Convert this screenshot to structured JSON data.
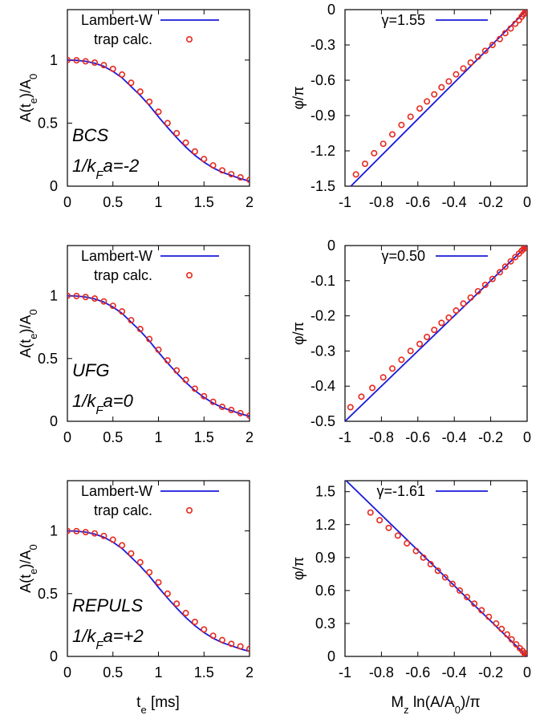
{
  "colors": {
    "curve": "#1a1adb",
    "points": "#e8281c",
    "annotation": "#1a1adb",
    "axis": "#000000"
  },
  "labels": {
    "amp_ylabel_main": "A(t",
    "amp_ylabel_sub": "e",
    "amp_ylabel_mid": ")/A",
    "amp_ylabel_sub2": "0",
    "phase_ylabel": "φ/π",
    "amp_xlabel_main": "t",
    "amp_xlabel_sub": "e",
    "amp_xlabel_unit": " [ms]",
    "phase_xlabel_M": "M",
    "phase_xlabel_z": "z",
    "phase_xlabel_ln": " ln(A/A",
    "phase_xlabel_0": "0",
    "phase_xlabel_end": ")/π"
  },
  "chart_data": [
    {
      "type": "line",
      "panel": "amp-bcs",
      "xlim": [
        0,
        2
      ],
      "ylim": [
        0,
        1.4
      ],
      "xticks": [
        "0",
        "0.5",
        "1",
        "1.5",
        "2"
      ],
      "yticks": [
        "0",
        "0.5",
        "1"
      ],
      "legend": [
        "Lambert-W",
        "trap calc."
      ],
      "annotation": [
        "BCS",
        "1/k",
        "F",
        "a=-2"
      ],
      "series": [
        {
          "name": "Lambert-W",
          "kind": "curve",
          "x": [
            0,
            0.1,
            0.2,
            0.3,
            0.4,
            0.5,
            0.6,
            0.7,
            0.8,
            0.9,
            1.0,
            1.1,
            1.2,
            1.3,
            1.4,
            1.5,
            1.6,
            1.7,
            1.8,
            1.9,
            2.0
          ],
          "y": [
            1.0,
            0.998,
            0.99,
            0.975,
            0.95,
            0.91,
            0.86,
            0.79,
            0.72,
            0.64,
            0.55,
            0.465,
            0.385,
            0.31,
            0.245,
            0.19,
            0.145,
            0.11,
            0.085,
            0.06,
            0.04
          ]
        },
        {
          "name": "trap calc.",
          "kind": "points",
          "x": [
            0,
            0.1,
            0.2,
            0.3,
            0.4,
            0.5,
            0.6,
            0.7,
            0.8,
            0.9,
            1.0,
            1.1,
            1.2,
            1.3,
            1.4,
            1.5,
            1.6,
            1.7,
            1.8,
            1.9,
            2.0
          ],
          "y": [
            1.0,
            0.998,
            0.99,
            0.98,
            0.96,
            0.93,
            0.885,
            0.82,
            0.75,
            0.67,
            0.59,
            0.5,
            0.42,
            0.345,
            0.275,
            0.215,
            0.165,
            0.125,
            0.095,
            0.07,
            0.05
          ]
        }
      ]
    },
    {
      "type": "line",
      "panel": "phase-bcs",
      "xlim": [
        -1,
        0
      ],
      "ylim": [
        -1.5,
        0
      ],
      "xticks": [
        "-1",
        "-0.8",
        "-0.6",
        "-0.4",
        "-0.2",
        "0"
      ],
      "yticks": [
        "0",
        "-0.3",
        "-0.6",
        "-0.9",
        "-1.2",
        "-1.5"
      ],
      "legend": [
        "γ=1.55"
      ],
      "series": [
        {
          "name": "γ=1.55",
          "kind": "curve",
          "x": [
            -0.968,
            0
          ],
          "y": [
            -1.5,
            0
          ]
        },
        {
          "kind": "points",
          "x": [
            -0.94,
            -0.89,
            -0.84,
            -0.79,
            -0.74,
            -0.69,
            -0.64,
            -0.59,
            -0.55,
            -0.51,
            -0.47,
            -0.43,
            -0.39,
            -0.35,
            -0.31,
            -0.27,
            -0.23,
            -0.19,
            -0.15,
            -0.12,
            -0.09,
            -0.065,
            -0.045,
            -0.03,
            -0.02,
            -0.012,
            -0.006,
            -0.002
          ],
          "y": [
            -1.4,
            -1.31,
            -1.22,
            -1.14,
            -1.06,
            -0.98,
            -0.91,
            -0.84,
            -0.78,
            -0.72,
            -0.66,
            -0.61,
            -0.55,
            -0.5,
            -0.45,
            -0.4,
            -0.35,
            -0.3,
            -0.25,
            -0.2,
            -0.16,
            -0.12,
            -0.09,
            -0.06,
            -0.04,
            -0.025,
            -0.012,
            -0.004
          ]
        }
      ]
    },
    {
      "type": "line",
      "panel": "amp-ufg",
      "xlim": [
        0,
        2
      ],
      "ylim": [
        0,
        1.4
      ],
      "xticks": [
        "0",
        "0.5",
        "1",
        "1.5",
        "2"
      ],
      "yticks": [
        "0",
        "0.5",
        "1"
      ],
      "legend": [
        "Lambert-W",
        "trap calc."
      ],
      "annotation": [
        "UFG",
        "1/k",
        "F",
        "a=0"
      ],
      "series": [
        {
          "name": "Lambert-W",
          "kind": "curve",
          "x": [
            0,
            0.1,
            0.2,
            0.3,
            0.4,
            0.5,
            0.6,
            0.7,
            0.8,
            0.9,
            1.0,
            1.1,
            1.2,
            1.3,
            1.4,
            1.5,
            1.6,
            1.7,
            1.8,
            1.9,
            2.0
          ],
          "y": [
            1.0,
            0.998,
            0.99,
            0.975,
            0.95,
            0.91,
            0.86,
            0.79,
            0.72,
            0.64,
            0.55,
            0.465,
            0.385,
            0.31,
            0.245,
            0.19,
            0.145,
            0.11,
            0.085,
            0.06,
            0.04
          ]
        },
        {
          "name": "trap calc.",
          "kind": "points",
          "x": [
            0,
            0.1,
            0.2,
            0.3,
            0.4,
            0.5,
            0.6,
            0.7,
            0.8,
            0.9,
            1.0,
            1.1,
            1.2,
            1.3,
            1.4,
            1.5,
            1.6,
            1.7,
            1.8,
            1.9,
            2.0
          ],
          "y": [
            1.0,
            0.998,
            0.99,
            0.978,
            0.955,
            0.92,
            0.875,
            0.805,
            0.735,
            0.655,
            0.57,
            0.485,
            0.405,
            0.33,
            0.26,
            0.2,
            0.155,
            0.115,
            0.09,
            0.065,
            0.045
          ]
        }
      ]
    },
    {
      "type": "line",
      "panel": "phase-ufg",
      "xlim": [
        -1,
        0
      ],
      "ylim": [
        -0.5,
        0
      ],
      "xticks": [
        "-1",
        "-0.8",
        "-0.6",
        "-0.4",
        "-0.2",
        "0"
      ],
      "yticks": [
        "0",
        "-0.1",
        "-0.2",
        "-0.3",
        "-0.4",
        "-0.5"
      ],
      "legend": [
        "γ=0.50"
      ],
      "series": [
        {
          "name": "γ=0.50",
          "kind": "curve",
          "x": [
            -1,
            0
          ],
          "y": [
            -0.5,
            0
          ]
        },
        {
          "kind": "points",
          "x": [
            -0.97,
            -0.91,
            -0.85,
            -0.79,
            -0.74,
            -0.69,
            -0.64,
            -0.59,
            -0.55,
            -0.51,
            -0.47,
            -0.43,
            -0.39,
            -0.35,
            -0.31,
            -0.27,
            -0.23,
            -0.19,
            -0.15,
            -0.12,
            -0.09,
            -0.065,
            -0.045,
            -0.03,
            -0.02,
            -0.012,
            -0.006,
            -0.002
          ],
          "y": [
            -0.46,
            -0.43,
            -0.405,
            -0.375,
            -0.35,
            -0.325,
            -0.3,
            -0.28,
            -0.26,
            -0.24,
            -0.22,
            -0.205,
            -0.185,
            -0.165,
            -0.148,
            -0.13,
            -0.112,
            -0.095,
            -0.076,
            -0.06,
            -0.045,
            -0.033,
            -0.023,
            -0.015,
            -0.01,
            -0.006,
            -0.003,
            -0.001
          ]
        }
      ]
    },
    {
      "type": "line",
      "panel": "amp-repuls",
      "xlim": [
        0,
        2
      ],
      "ylim": [
        0,
        1.4
      ],
      "xticks": [
        "0",
        "0.5",
        "1",
        "1.5",
        "2"
      ],
      "yticks": [
        "0",
        "0.5",
        "1"
      ],
      "legend": [
        "Lambert-W",
        "trap calc."
      ],
      "annotation": [
        "REPULS",
        "1/k",
        "F",
        "a=+2"
      ],
      "series": [
        {
          "name": "Lambert-W",
          "kind": "curve",
          "x": [
            0,
            0.1,
            0.2,
            0.3,
            0.4,
            0.5,
            0.6,
            0.7,
            0.8,
            0.9,
            1.0,
            1.1,
            1.2,
            1.3,
            1.4,
            1.5,
            1.6,
            1.7,
            1.8,
            1.9,
            2.0
          ],
          "y": [
            1.0,
            0.998,
            0.99,
            0.975,
            0.95,
            0.91,
            0.86,
            0.79,
            0.72,
            0.64,
            0.55,
            0.465,
            0.385,
            0.31,
            0.245,
            0.19,
            0.145,
            0.11,
            0.085,
            0.06,
            0.04
          ]
        },
        {
          "name": "trap calc.",
          "kind": "points",
          "x": [
            0,
            0.1,
            0.2,
            0.3,
            0.4,
            0.5,
            0.6,
            0.7,
            0.8,
            0.9,
            1.0,
            1.1,
            1.2,
            1.3,
            1.4,
            1.5,
            1.6,
            1.7,
            1.8,
            1.9,
            2.0
          ],
          "y": [
            1.0,
            0.998,
            0.99,
            0.98,
            0.96,
            0.93,
            0.885,
            0.82,
            0.75,
            0.67,
            0.59,
            0.5,
            0.42,
            0.345,
            0.275,
            0.215,
            0.165,
            0.13,
            0.1,
            0.08,
            0.06
          ]
        }
      ]
    },
    {
      "type": "line",
      "panel": "phase-repuls",
      "xlim": [
        -1,
        0
      ],
      "ylim": [
        0,
        1.6
      ],
      "xticks": [
        "-1",
        "-0.8",
        "-0.6",
        "-0.4",
        "-0.2",
        "0"
      ],
      "yticks": [
        "0",
        "0.3",
        "0.6",
        "0.9",
        "1.2",
        "1.5"
      ],
      "legend": [
        "γ=-1.61"
      ],
      "series": [
        {
          "name": "γ=-1.61",
          "kind": "curve",
          "x": [
            -1,
            0
          ],
          "y": [
            1.61,
            0
          ]
        },
        {
          "kind": "points",
          "x": [
            -0.86,
            -0.81,
            -0.76,
            -0.71,
            -0.66,
            -0.61,
            -0.57,
            -0.53,
            -0.49,
            -0.45,
            -0.41,
            -0.37,
            -0.33,
            -0.29,
            -0.25,
            -0.21,
            -0.17,
            -0.14,
            -0.11,
            -0.085,
            -0.06,
            -0.04,
            -0.025,
            -0.015,
            -0.008,
            -0.003
          ],
          "y": [
            1.31,
            1.24,
            1.17,
            1.1,
            1.03,
            0.96,
            0.9,
            0.84,
            0.78,
            0.72,
            0.66,
            0.6,
            0.54,
            0.48,
            0.42,
            0.36,
            0.3,
            0.25,
            0.2,
            0.155,
            0.11,
            0.075,
            0.05,
            0.03,
            0.016,
            0.006
          ]
        }
      ]
    }
  ]
}
